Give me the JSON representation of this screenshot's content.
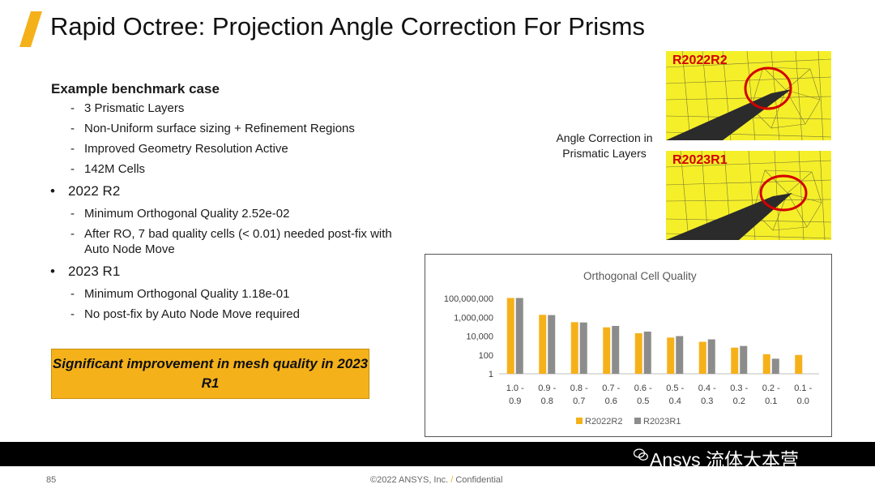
{
  "title": "Rapid Octree: Projection Angle Correction For Prisms",
  "benchmark": {
    "heading": "Example benchmark case",
    "items": [
      "3 Prismatic Layers",
      "Non-Uniform surface sizing + Refinement Regions",
      "Improved Geometry Resolution Active",
      "142M Cells"
    ]
  },
  "r2022": {
    "label": "2022 R2",
    "items": [
      "Minimum Orthogonal Quality 2.52e-02",
      "After RO, 7 bad quality cells (< 0.01) needed post-fix with Auto Node Move"
    ]
  },
  "r2023": {
    "label": "2023 R1",
    "items": [
      "Minimum Orthogonal Quality 1.18e-01",
      "No post-fix by Auto Node Move required"
    ]
  },
  "callout": "Significant improvement in mesh quality in 2023 R1",
  "caption": "Angle Correction in Prismatic Layers",
  "images": [
    {
      "label": "R2022R2"
    },
    {
      "label": "R2023R1"
    }
  ],
  "colors": {
    "accent": "#f5b11a",
    "series_2022": "#f5b11a",
    "series_2023": "#8c8c8c",
    "highlight_circle": "#d40000",
    "mesh_yellow": "#f5ef2a"
  },
  "chart_data": {
    "type": "bar",
    "title": "Orthogonal Cell Quality",
    "categories": [
      "1.0 - 0.9",
      "0.9 - 0.8",
      "0.8 - 0.7",
      "0.7 - 0.6",
      "0.6 - 0.5",
      "0.5 - 0.4",
      "0.4 - 0.3",
      "0.3 - 0.2",
      "0.2 - 0.1",
      "0.1 - 0.0"
    ],
    "series": [
      {
        "name": "R2022R2",
        "values": [
          110000000,
          1800000,
          300000,
          85000,
          20000,
          7000,
          2500,
          600,
          120,
          100
        ]
      },
      {
        "name": "R2023R1",
        "values": [
          110000000,
          1700000,
          280000,
          120000,
          30000,
          10000,
          4500,
          900,
          40,
          0
        ]
      }
    ],
    "ytick_labels": [
      "100,000,000",
      "1,000,000",
      "10,000",
      "100",
      "1"
    ],
    "yscale": "log",
    "ylim": [
      1,
      100000000
    ],
    "legend": "bottom",
    "grid": false
  },
  "footer": {
    "brand": "Ansys 流体大本营",
    "page": "85",
    "copyright": "©2022 ANSYS, Inc.",
    "sep": "/",
    "confidential": "Confidential"
  }
}
